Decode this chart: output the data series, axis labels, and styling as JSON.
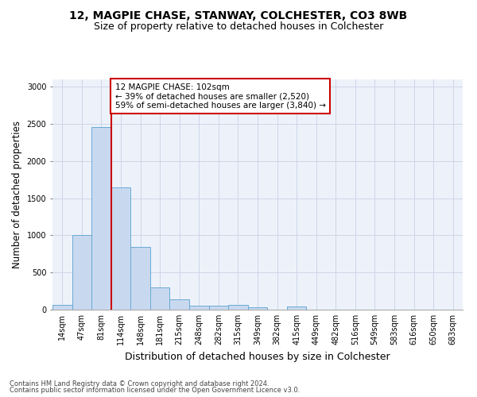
{
  "title": "12, MAGPIE CHASE, STANWAY, COLCHESTER, CO3 8WB",
  "subtitle": "Size of property relative to detached houses in Colchester",
  "xlabel": "Distribution of detached houses by size in Colchester",
  "ylabel": "Number of detached properties",
  "footer_line1": "Contains HM Land Registry data © Crown copyright and database right 2024.",
  "footer_line2": "Contains public sector information licensed under the Open Government Licence v3.0.",
  "annotation_line1": "12 MAGPIE CHASE: 102sqm",
  "annotation_line2": "← 39% of detached houses are smaller (2,520)",
  "annotation_line3": "59% of semi-detached houses are larger (3,840) →",
  "bin_labels": [
    "14sqm",
    "47sqm",
    "81sqm",
    "114sqm",
    "148sqm",
    "181sqm",
    "215sqm",
    "248sqm",
    "282sqm",
    "315sqm",
    "349sqm",
    "382sqm",
    "415sqm",
    "449sqm",
    "482sqm",
    "516sqm",
    "549sqm",
    "583sqm",
    "616sqm",
    "650sqm",
    "683sqm"
  ],
  "bar_values": [
    60,
    1000,
    2460,
    1650,
    840,
    300,
    140,
    55,
    55,
    60,
    35,
    0,
    40,
    0,
    0,
    0,
    0,
    0,
    0,
    0,
    0
  ],
  "bar_color": "#c8d9ef",
  "bar_edge_color": "#6aaad4",
  "vline_color": "#cc0000",
  "vline_x": 2.5,
  "ylim": [
    0,
    3100
  ],
  "yticks": [
    0,
    500,
    1000,
    1500,
    2000,
    2500,
    3000
  ],
  "annotation_box_color": "#cc0000",
  "grid_color": "#ccd6e8",
  "background_color": "#edf2fa",
  "title_fontsize": 10,
  "subtitle_fontsize": 9,
  "ylabel_fontsize": 8.5,
  "xlabel_fontsize": 9,
  "tick_fontsize": 7,
  "footer_fontsize": 6
}
